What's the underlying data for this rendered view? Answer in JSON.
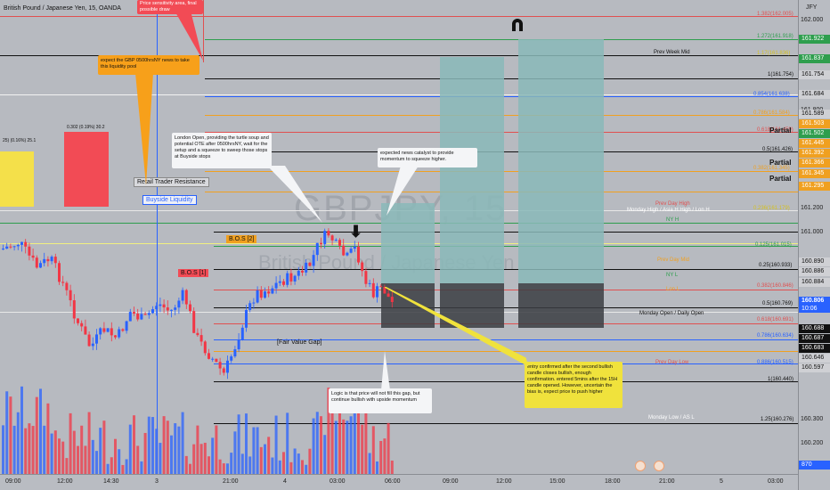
{
  "symbol": {
    "title": "British Pound / Japanese Yen, 15, OANDA"
  },
  "axis": {
    "currency": "JFY"
  },
  "price_labels": [
    "162.000",
    "161.800",
    "161.600",
    "161.400",
    "161.200",
    "161.000",
    "160.800",
    "160.600",
    "160.400",
    "160.300",
    "160.200",
    "160.100"
  ],
  "price_tags": [
    {
      "text": "161.922",
      "color": "#2e9e4e"
    },
    {
      "text": "161.837",
      "color": "#2e9e4e"
    },
    {
      "text": "161.754",
      "color": "#cfd0d4",
      "dark": true
    },
    {
      "text": "161.684",
      "color": "#cfd0d4",
      "dark": true
    },
    {
      "text": "161.589",
      "color": "#cfd0d4",
      "dark": true
    },
    {
      "text": "161.503",
      "color": "#f0a020"
    },
    {
      "text": "161.502",
      "color": "#2e9e4e"
    },
    {
      "text": "161.445",
      "color": "#f0a020"
    },
    {
      "text": "161.392",
      "color": "#f0a020"
    },
    {
      "text": "161.366",
      "color": "#f0a020"
    },
    {
      "text": "161.345",
      "color": "#f0a020"
    },
    {
      "text": "161.295",
      "color": "#f0a020"
    },
    {
      "text": "160.890",
      "color": "#cfd0d4",
      "dark": true
    },
    {
      "text": "160.886",
      "color": "#cfd0d4",
      "dark": true
    },
    {
      "text": "160.884",
      "color": "#cfd0d4",
      "dark": true
    },
    {
      "text": "160.806",
      "sub": "10:06",
      "color": "#2962ff"
    },
    {
      "text": "160.688",
      "color": "#111"
    },
    {
      "text": "160.687",
      "color": "#111"
    },
    {
      "text": "160.683",
      "color": "#111"
    },
    {
      "text": "160.646",
      "color": "#cfd0d4",
      "dark": true
    },
    {
      "text": "160.597",
      "color": "#cfd0d4",
      "dark": true
    },
    {
      "text": "870",
      "color": "#2962ff"
    }
  ],
  "time_labels": [
    "09:00",
    "12:00",
    "14:30",
    "3",
    "21:00",
    "4",
    "03:00",
    "06:00",
    "09:00",
    "12:00",
    "15:00",
    "18:00",
    "21:00",
    "5",
    "03:00"
  ],
  "levels": [
    {
      "text": "1.382(162.005)",
      "color": "#e05050"
    },
    {
      "text": "1.272(161.918)",
      "color": "#2e9e4e"
    },
    {
      "text": "1.17(161.836)",
      "color": "#d4c020"
    },
    {
      "text": "1(161.754)",
      "color": "#111"
    },
    {
      "text": "0.854(161.638)",
      "color": "#2962ff"
    },
    {
      "text": "0.786(161.584)",
      "color": "#f0a020"
    },
    {
      "text": "0.618(161.459)",
      "color": "#e05050"
    },
    {
      "text": "0.5(161.426)",
      "color": "#111"
    },
    {
      "text": "0.382(161.345)",
      "color": "#f0a020"
    },
    {
      "text": "0.236(161.179)",
      "color": "#d4c020"
    },
    {
      "text": "0.125(161.015)",
      "color": "#2e9e4e"
    },
    {
      "text": "0.25(160.933)",
      "color": "#111"
    },
    {
      "text": "0.382(160.846)",
      "color": "#e05050"
    },
    {
      "text": "0.5(160.769)",
      "color": "#111"
    },
    {
      "text": "0.618(160.691)",
      "color": "#e05050"
    },
    {
      "text": "0.786(160.634)",
      "color": "#2962ff"
    },
    {
      "text": "0.886(160.515)",
      "color": "#2962ff"
    },
    {
      "text": "1(160.440)",
      "color": "#111"
    },
    {
      "text": "1.25(160.276)",
      "color": "#111"
    }
  ],
  "line_labels": {
    "prev_week_mid": "Prev Week Mid",
    "prev_day_high": "Prev Day High",
    "monday_high": "Monday High / Asia H High / Lon H",
    "ny_h": "NY H",
    "prev_day_mid": "Prev Day Mid",
    "ny_l": "NY L",
    "lon_l": "Lon L",
    "monday_open": "Monday Open / Daily Open",
    "prev_day_low": "Prev Day Low",
    "monday_low": "Monday Low / AS L"
  },
  "partials": [
    "Partial",
    "Partial",
    "Partial"
  ],
  "labels": {
    "retail_trader_resistance": "Retail Trader Resistance",
    "buyside_liquidity": "Buyside Liquidity",
    "bos_2": "B.O.S [2]",
    "bos_1": "B.O.S [1]",
    "fair_value_gap": "[Fair Value Gap]",
    "box_left": "25) (0.16%) 25.1",
    "box_right": "0.302 (0.19%) 30.2"
  },
  "notes": {
    "sensitivity": "Price sensitivity area, final possible draw",
    "news_liquidity": "expect the GBP 0500hrsNY news to take this liquidity pool",
    "london_open": "London Open, providing the turtle soup and potential OTE after 0500hrsNY, wait for the setup and a squeeze to sweep those stops at Buyside stops",
    "news_catalyst": "expected news catalyst to provide momentum to squeeze higher.",
    "entry": "entry confirmed after the second bullish candle closes bullish, enough confirmation. entered 5mins after the 15H candle opened. However, uncertain the bias is, expect price to push higher",
    "logic": "Logic is that price will not fill this gap, but continue bullish with upside momentum"
  },
  "watermark": {
    "symbol": "GBPJPY, 15",
    "name": "British Pound / Japanese Yen"
  },
  "colors": {
    "bull": "#2962ff",
    "bear": "#f23645",
    "bg": "#b7bac0",
    "projection": "#8ab8b8"
  }
}
